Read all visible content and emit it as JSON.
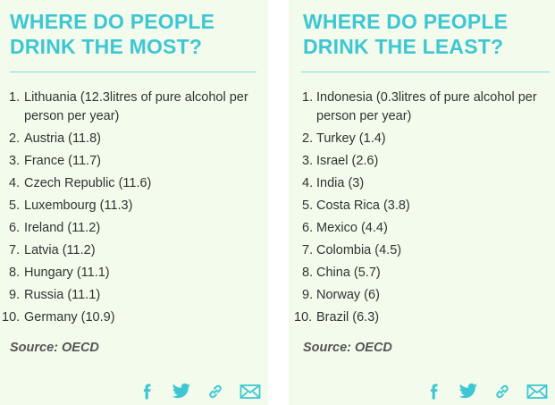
{
  "left": {
    "title": "WHERE DO PEOPLE\nDRINK THE MOST?",
    "items": [
      {
        "num": "1.",
        "text": "Lithuania  (12.3litres of pure alcohol per person per year)"
      },
      {
        "num": "2.",
        "text": "Austria (11.8)"
      },
      {
        "num": "3.",
        "text": "France (11.7)"
      },
      {
        "num": "4.",
        "text": "Czech Republic (11.6)"
      },
      {
        "num": "5.",
        "text": "Luxembourg (11.3)"
      },
      {
        "num": "6.",
        "text": "Ireland (11.2)"
      },
      {
        "num": "7.",
        "text": "Latvia (11.2)"
      },
      {
        "num": "8.",
        "text": "Hungary (11.1)"
      },
      {
        "num": "9.",
        "text": "Russia (11.1)"
      },
      {
        "num": "10.",
        "text": "Germany (10.9)"
      }
    ],
    "source": "Source: OECD"
  },
  "right": {
    "title": "WHERE DO PEOPLE\nDRINK THE LEAST?",
    "items": [
      {
        "num": "1.",
        "text": "Indonesia (0.3litres of pure alcohol per person per year)"
      },
      {
        "num": "2.",
        "text": "Turkey (1.4)"
      },
      {
        "num": "3.",
        "text": "Israel (2.6)"
      },
      {
        "num": "4.",
        "text": "India (3)"
      },
      {
        "num": "5.",
        "text": "Costa Rica (3.8)"
      },
      {
        "num": "6.",
        "text": "Mexico (4.4)"
      },
      {
        "num": "7.",
        "text": "Colombia (4.5)"
      },
      {
        "num": "8.",
        "text": "China (5.7)"
      },
      {
        "num": "9.",
        "text": "Norway (6)"
      },
      {
        "num": "10.",
        "text": "Brazil (6.3)"
      }
    ],
    "source": "Source: OECD"
  },
  "share_icons": [
    "facebook-icon",
    "twitter-icon",
    "link-icon",
    "email-icon"
  ],
  "colors": {
    "accent": "#3ec7d3",
    "panel_bg": "#f3fbec",
    "text": "#333333"
  }
}
